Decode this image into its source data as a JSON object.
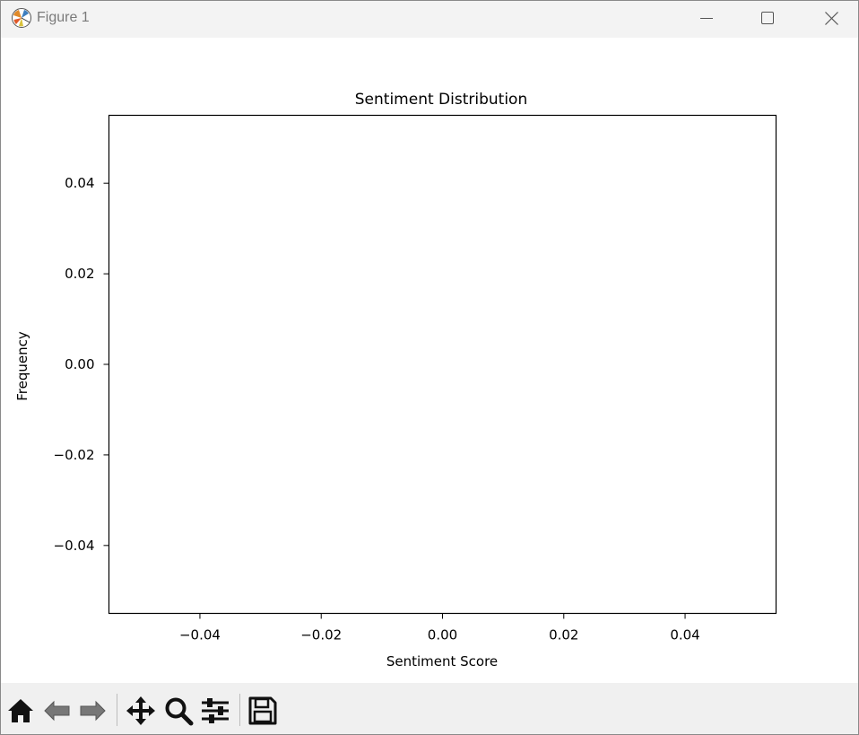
{
  "window": {
    "title": "Figure 1",
    "controls": [
      "minimize",
      "maximize",
      "close"
    ]
  },
  "toolbar": {
    "buttons": [
      {
        "name": "home",
        "icon": "home-icon"
      },
      {
        "name": "back",
        "icon": "back-arrow-icon"
      },
      {
        "name": "forward",
        "icon": "forward-arrow-icon"
      },
      {
        "name": "pan",
        "icon": "move-icon"
      },
      {
        "name": "zoom",
        "icon": "zoom-icon"
      },
      {
        "name": "configure-subplots",
        "icon": "sliders-icon"
      },
      {
        "name": "save",
        "icon": "save-icon"
      }
    ]
  },
  "chart_data": {
    "type": "histogram",
    "title": "Sentiment Distribution",
    "xlabel": "Sentiment Score",
    "ylabel": "Frequency",
    "xlim": [
      -0.055,
      0.055
    ],
    "ylim": [
      -0.055,
      0.055
    ],
    "xticks": [
      -0.04,
      -0.02,
      0.0,
      0.02,
      0.04
    ],
    "yticks": [
      -0.04,
      -0.02,
      0.0,
      0.02,
      0.04
    ],
    "xtick_labels": [
      "−0.04",
      "−0.02",
      "0.00",
      "0.02",
      "0.04"
    ],
    "ytick_labels": [
      "−0.04",
      "−0.02",
      "0.00",
      "0.02",
      "0.04"
    ],
    "values": [],
    "grid": false
  }
}
